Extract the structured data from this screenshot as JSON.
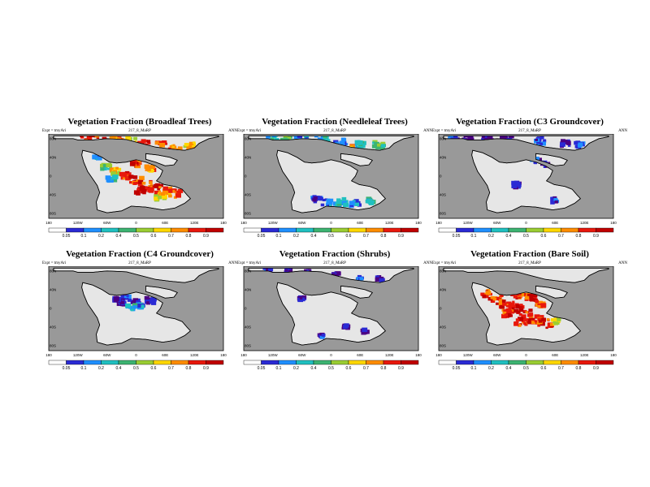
{
  "chart_data": [
    {
      "type": "heatmap",
      "title": "Vegetation Fraction (Broadleaf Trees)",
      "experiment": "Expt = tmyAri",
      "run_code": "217_8_MaRP",
      "period": "ANN",
      "colorbar_levels": [
        "0.05",
        "0.1",
        "0.2",
        "0.4",
        "0.5",
        "0.6",
        "0.7",
        "0.8",
        "0.9"
      ],
      "x_ticks": [
        "180",
        "120W",
        "60W",
        "0",
        "60E",
        "120E",
        "180"
      ],
      "y_ticks": [
        "80N",
        "40N",
        "0",
        "40S",
        "80S"
      ],
      "xlim": [
        -180,
        180
      ],
      "ylim": [
        -90,
        90
      ],
      "dominant_range": "0.7-0.9 over northern continent and southern lobe"
    },
    {
      "type": "heatmap",
      "title": "Vegetation Fraction (Needleleaf Trees)",
      "experiment": "Expt = tmyAri",
      "run_code": "217_8_MaRP",
      "period": "ANN",
      "colorbar_levels": [
        "0.05",
        "0.1",
        "0.2",
        "0.4",
        "0.5",
        "0.6",
        "0.7",
        "0.8",
        "0.9"
      ],
      "x_ticks": [
        "180",
        "120W",
        "60W",
        "0",
        "60E",
        "120E",
        "180"
      ],
      "y_ticks": [
        "80N",
        "40N",
        "0",
        "40S",
        "80S"
      ],
      "xlim": [
        -180,
        180
      ],
      "ylim": [
        -90,
        90
      ],
      "dominant_range": "0.1-0.5 at high latitudes"
    },
    {
      "type": "heatmap",
      "title": "Vegetation Fraction (C3 Groundcover)",
      "experiment": "Expt = tmyAri",
      "run_code": "217_8_MaRP",
      "period": "ANN",
      "colorbar_levels": [
        "0.05",
        "0.1",
        "0.2",
        "0.4",
        "0.5",
        "0.6",
        "0.7",
        "0.8",
        "0.9"
      ],
      "x_ticks": [
        "180",
        "120W",
        "60W",
        "0",
        "60E",
        "120E",
        "180"
      ],
      "y_ticks": [
        "80N",
        "40N",
        "0",
        "40S",
        "80S"
      ],
      "xlim": [
        -180,
        180
      ],
      "ylim": [
        -90,
        90
      ],
      "dominant_range": "0.05-0.2 scattered"
    },
    {
      "type": "heatmap",
      "title": "Vegetation Fraction (C4 Groundcover)",
      "experiment": "Expt = tmyAri",
      "run_code": "217_8_MaRP",
      "period": "ANN",
      "colorbar_levels": [
        "0.05",
        "0.1",
        "0.2",
        "0.4",
        "0.5",
        "0.6",
        "0.7",
        "0.8",
        "0.9"
      ],
      "x_ticks": [
        "180",
        "120W",
        "60W",
        "0",
        "60E",
        "120E",
        "180"
      ],
      "y_ticks": [
        "80N",
        "40N",
        "0",
        "40S",
        "80S"
      ],
      "xlim": [
        -180,
        180
      ],
      "ylim": [
        -90,
        90
      ],
      "dominant_range": "0.05-0.4 near equator"
    },
    {
      "type": "heatmap",
      "title": "Vegetation Fraction (Shrubs)",
      "experiment": "Expt = tmyAri",
      "run_code": "217_8_MaRP",
      "period": "ANN",
      "colorbar_levels": [
        "0.05",
        "0.1",
        "0.2",
        "0.4",
        "0.5",
        "0.6",
        "0.7",
        "0.8",
        "0.9"
      ],
      "x_ticks": [
        "180",
        "120W",
        "60W",
        "0",
        "60E",
        "120E",
        "180"
      ],
      "y_ticks": [
        "80N",
        "40N",
        "0",
        "40S",
        "80S"
      ],
      "xlim": [
        -180,
        180
      ],
      "ylim": [
        -90,
        90
      ],
      "dominant_range": "0.05-0.1 scattered"
    },
    {
      "type": "heatmap",
      "title": "Vegetation Fraction (Bare Soil)",
      "experiment": "Expt = tmyAri",
      "run_code": "217_8_MaRP",
      "period": "ANN",
      "colorbar_levels": [
        "0.05",
        "0.1",
        "0.2",
        "0.4",
        "0.5",
        "0.6",
        "0.7",
        "0.8",
        "0.9"
      ],
      "x_ticks": [
        "180",
        "120W",
        "60W",
        "0",
        "60E",
        "120E",
        "180"
      ],
      "y_ticks": [
        "80N",
        "40N",
        "0",
        "40S",
        "80S"
      ],
      "xlim": [
        -180,
        180
      ],
      "ylim": [
        -90,
        90
      ],
      "dominant_range": "0.9+ over central continent"
    }
  ],
  "colors": {
    "ocean": "#999999",
    "land_low": "#e6e6e6",
    "palette": [
      "#4b0082",
      "#2a2ad4",
      "#1f8fff",
      "#20c0c0",
      "#3cb371",
      "#9acd32",
      "#ffd700",
      "#ff8c00",
      "#e8180c",
      "#c00000"
    ]
  }
}
